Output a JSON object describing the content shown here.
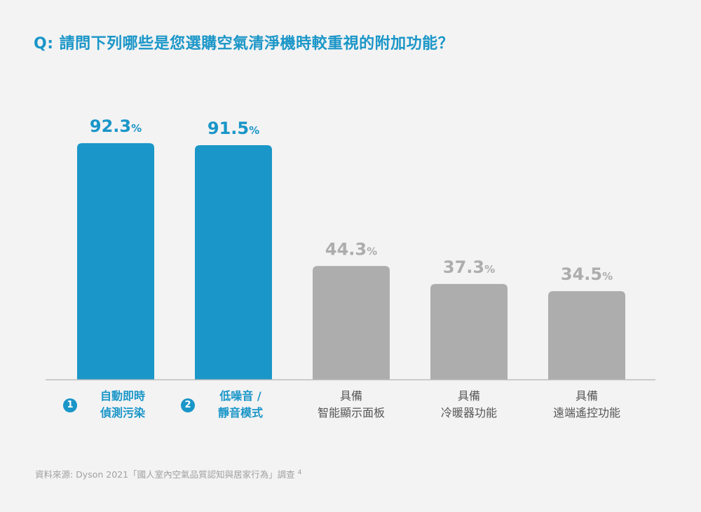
{
  "title": "Q: 請問下列哪些是您選購空氣清淨機時較重視的附加功能？",
  "colors": {
    "highlight": "#1a96c8",
    "muted": "#adadad",
    "axis": "#bdbdbd",
    "muted_text": "#a0a0a0"
  },
  "chart_data": {
    "type": "bar",
    "categories": [
      "自動即時偵測污染",
      "低噪音 / 靜音模式",
      "具備智能顯示面板",
      "具備冷暖器功能",
      "具備遠端遙控功能"
    ],
    "values": [
      92.3,
      91.5,
      44.3,
      37.3,
      34.5
    ],
    "value_labels": [
      "92.3",
      "91.5",
      "44.3",
      "37.3",
      "34.5"
    ],
    "unit": "%",
    "highlighted": [
      true,
      true,
      false,
      false,
      false
    ],
    "ylim": [
      0,
      100
    ]
  },
  "categories_display": [
    {
      "num": "1",
      "line1": "自動即時",
      "line2": "偵測污染"
    },
    {
      "num": "2",
      "line1": "低噪音 /",
      "line2": "靜音模式"
    },
    {
      "num": "",
      "line1": "具備",
      "line2": "智能顯示面板"
    },
    {
      "num": "",
      "line1": "具備",
      "line2": "冷暖器功能"
    },
    {
      "num": "",
      "line1": "具備",
      "line2": "遠端遙控功能"
    }
  ],
  "source": {
    "text": "資料來源: Dyson 2021「國人室內空氣品質認知與居家行為」調查",
    "footnote": "4"
  }
}
